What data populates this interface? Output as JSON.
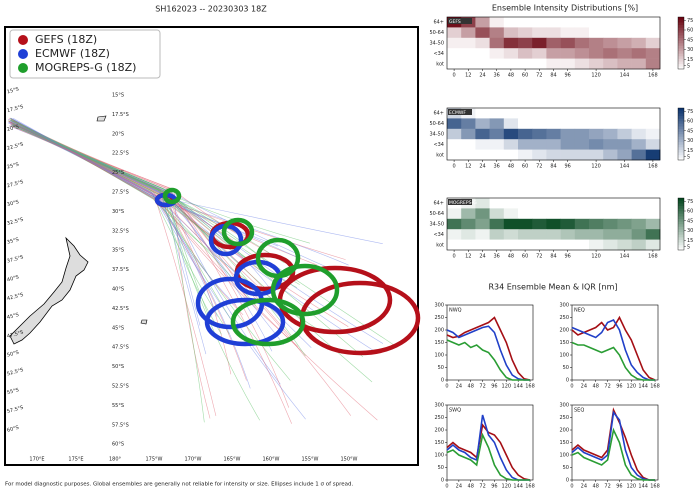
{
  "map": {
    "title": "SH162023 -- 20230303 18Z",
    "legend": [
      {
        "name": "GEFS (18Z)",
        "color": "#b5101a"
      },
      {
        "name": "ECMWF (18Z)",
        "color": "#1f3fd6"
      },
      {
        "name": "MOGREPS-G (18Z)",
        "color": "#1f9e2c"
      }
    ],
    "lat_labels": [
      "15°S",
      "17.5°S",
      "20°S",
      "22.5°S",
      "25°S",
      "27.5°S",
      "30°S",
      "32.5°S",
      "35°S",
      "37.5°S",
      "40°S",
      "42.5°S",
      "45°S",
      "47.5°S",
      "50°S",
      "52.5°S",
      "55°S",
      "57.5°S",
      "60°S"
    ],
    "lon_labels": [
      "170°E",
      "175°E",
      "180°",
      "175°W",
      "170°W",
      "165°W",
      "160°W",
      "155°W",
      "150°W"
    ],
    "footer": "For model diagnostic purposes. Global ensembles are generally not reliable for intensity or size. Ellipses include 1 σ of spread."
  },
  "heatmaps": {
    "title": "Ensemble Intensity Distributions [%]",
    "rows": [
      "64+",
      "50-64",
      "34-50",
      "<34",
      "kot"
    ],
    "x": [
      0,
      12,
      24,
      36,
      48,
      60,
      72,
      84,
      96,
      108,
      120,
      132,
      144,
      156,
      168
    ],
    "xlim": [
      -6,
      174
    ],
    "xticks": [
      0,
      12,
      24,
      36,
      48,
      60,
      72,
      84,
      96,
      120,
      144,
      168
    ],
    "clim": [
      0,
      80
    ],
    "cticks": [
      5,
      15,
      30,
      45,
      60,
      75
    ],
    "panels": [
      {
        "name": "GEFS",
        "color": "#67000d",
        "values": [
          [
            75,
            60,
            30,
            5,
            0,
            0,
            0,
            0,
            0,
            0,
            0,
            0,
            0,
            0,
            0
          ],
          [
            15,
            30,
            55,
            40,
            20,
            15,
            10,
            10,
            5,
            5,
            0,
            0,
            0,
            0,
            0
          ],
          [
            5,
            5,
            10,
            45,
            65,
            60,
            70,
            50,
            55,
            45,
            40,
            35,
            30,
            25,
            15
          ],
          [
            0,
            0,
            0,
            5,
            10,
            20,
            15,
            30,
            30,
            35,
            40,
            45,
            40,
            45,
            40
          ],
          [
            0,
            0,
            0,
            0,
            0,
            0,
            0,
            5,
            5,
            10,
            15,
            20,
            25,
            25,
            40
          ]
        ]
      },
      {
        "name": "ECMWF",
        "color": "#08306b",
        "values": [
          [
            15,
            5,
            0,
            0,
            0,
            0,
            0,
            0,
            0,
            0,
            0,
            0,
            0,
            0,
            0
          ],
          [
            60,
            50,
            30,
            40,
            10,
            0,
            0,
            0,
            0,
            0,
            0,
            0,
            0,
            0,
            0
          ],
          [
            20,
            40,
            60,
            50,
            70,
            60,
            55,
            50,
            40,
            40,
            35,
            30,
            20,
            10,
            5
          ],
          [
            0,
            0,
            5,
            5,
            15,
            30,
            30,
            30,
            40,
            40,
            45,
            40,
            40,
            30,
            15
          ],
          [
            0,
            0,
            0,
            0,
            0,
            5,
            10,
            15,
            15,
            15,
            15,
            25,
            35,
            55,
            75
          ]
        ]
      },
      {
        "name": "MOGREPS-G",
        "color": "#00441b",
        "values": [
          [
            0,
            5,
            10,
            0,
            0,
            0,
            0,
            0,
            0,
            0,
            0,
            0,
            0,
            0,
            0
          ],
          [
            5,
            30,
            45,
            15,
            5,
            0,
            0,
            0,
            0,
            0,
            0,
            0,
            0,
            0,
            0
          ],
          [
            60,
            50,
            40,
            60,
            75,
            75,
            70,
            75,
            70,
            60,
            55,
            50,
            45,
            40,
            30
          ],
          [
            5,
            10,
            5,
            20,
            15,
            20,
            20,
            20,
            25,
            30,
            30,
            35,
            35,
            45,
            60
          ],
          [
            0,
            0,
            0,
            0,
            0,
            0,
            0,
            0,
            0,
            0,
            5,
            10,
            15,
            20,
            10
          ]
        ]
      }
    ]
  },
  "r34": {
    "title": "R34 Ensemble Mean & IQR [nm]",
    "x": [
      0,
      12,
      24,
      36,
      48,
      60,
      72,
      84,
      96,
      108,
      120,
      132,
      144,
      156,
      168
    ],
    "xlim": [
      0,
      174
    ],
    "xticks": [
      0,
      24,
      48,
      72,
      96,
      120,
      144,
      168
    ],
    "ylim": [
      0,
      300
    ],
    "yticks": [
      0,
      50,
      100,
      150,
      200,
      250,
      300
    ],
    "panels": [
      {
        "name": "NWQ",
        "series": [
          {
            "color": "#a50f15",
            "values": [
              180,
              170,
              175,
              190,
              200,
              210,
              220,
              230,
              250,
              200,
              150,
              80,
              30,
              5,
              0
            ]
          },
          {
            "color": "#2140c8",
            "values": [
              200,
              190,
              170,
              180,
              190,
              200,
              210,
              215,
              190,
              120,
              60,
              20,
              5,
              0,
              0
            ]
          },
          {
            "color": "#2a9d34",
            "values": [
              160,
              150,
              140,
              150,
              130,
              140,
              120,
              110,
              80,
              40,
              10,
              0,
              0,
              0,
              0
            ]
          }
        ]
      },
      {
        "name": "NEQ",
        "series": [
          {
            "color": "#a50f15",
            "values": [
              200,
              180,
              190,
              200,
              210,
              230,
              200,
              210,
              250,
              200,
              160,
              100,
              40,
              10,
              0
            ]
          },
          {
            "color": "#2140c8",
            "values": [
              210,
              200,
              190,
              180,
              170,
              190,
              230,
              240,
              200,
              120,
              60,
              30,
              10,
              0,
              0
            ]
          },
          {
            "color": "#2a9d34",
            "values": [
              150,
              140,
              140,
              130,
              120,
              110,
              120,
              130,
              100,
              50,
              20,
              5,
              0,
              0,
              0
            ]
          }
        ]
      },
      {
        "name": "SWQ",
        "series": [
          {
            "color": "#a50f15",
            "values": [
              130,
              150,
              130,
              120,
              110,
              90,
              220,
              190,
              180,
              150,
              100,
              50,
              20,
              5,
              0
            ]
          },
          {
            "color": "#2140c8",
            "values": [
              120,
              140,
              120,
              110,
              90,
              80,
              260,
              180,
              150,
              90,
              40,
              10,
              0,
              0,
              0
            ]
          },
          {
            "color": "#2a9d34",
            "values": [
              110,
              120,
              100,
              90,
              80,
              60,
              180,
              130,
              60,
              20,
              5,
              0,
              0,
              0,
              0
            ]
          }
        ]
      },
      {
        "name": "SEQ",
        "series": [
          {
            "color": "#a50f15",
            "values": [
              120,
              140,
              120,
              110,
              100,
              90,
              120,
              280,
              230,
              170,
              100,
              40,
              10,
              0,
              0
            ]
          },
          {
            "color": "#2140c8",
            "values": [
              110,
              130,
              110,
              100,
              90,
              80,
              100,
              270,
              240,
              120,
              50,
              20,
              5,
              0,
              0
            ]
          },
          {
            "color": "#2a9d34",
            "values": [
              100,
              110,
              90,
              80,
              70,
              60,
              80,
              200,
              150,
              60,
              20,
              5,
              0,
              0,
              0
            ]
          }
        ]
      }
    ]
  }
}
